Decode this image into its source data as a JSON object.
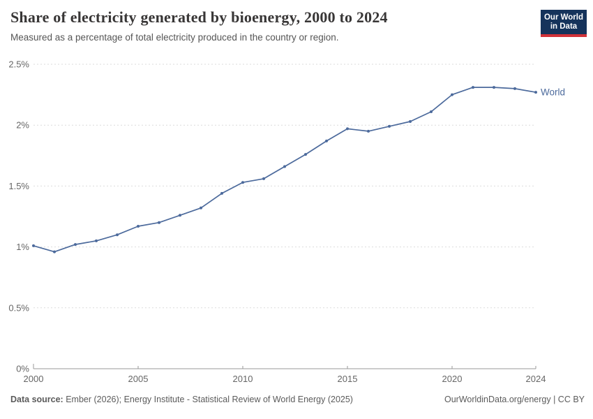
{
  "header": {
    "title": "Share of electricity generated by bioenergy, 2000 to 2024",
    "subtitle": "Measured as a percentage of total electricity produced in the country or region.",
    "logo": {
      "line1": "Our World",
      "line2": "in Data"
    }
  },
  "chart_data": {
    "type": "line",
    "title": "Share of electricity generated by bioenergy, 2000 to 2024",
    "xlabel": "",
    "ylabel": "",
    "xlim": [
      2000,
      2024
    ],
    "ylim": [
      0,
      2.5
    ],
    "grid": "horizontal-dashed",
    "legend_position": "end-of-line-label",
    "x": [
      2000,
      2001,
      2002,
      2003,
      2004,
      2005,
      2006,
      2007,
      2008,
      2009,
      2010,
      2011,
      2012,
      2013,
      2014,
      2015,
      2016,
      2017,
      2018,
      2019,
      2020,
      2021,
      2022,
      2023,
      2024
    ],
    "series": [
      {
        "name": "World",
        "color": "#4C6A9C",
        "values": [
          1.01,
          0.96,
          1.02,
          1.05,
          1.1,
          1.17,
          1.2,
          1.26,
          1.32,
          1.44,
          1.53,
          1.56,
          1.66,
          1.76,
          1.87,
          1.97,
          1.95,
          1.99,
          2.03,
          2.11,
          2.25,
          2.31,
          2.31,
          2.3,
          2.27
        ]
      }
    ],
    "y_ticks": {
      "values": [
        0,
        0.5,
        1,
        1.5,
        2,
        2.5
      ],
      "labels": [
        "0%",
        "0.5%",
        "1%",
        "1.5%",
        "2%",
        "2.5%"
      ]
    },
    "x_ticks": {
      "values": [
        2000,
        2005,
        2010,
        2015,
        2020,
        2024
      ],
      "labels": [
        "2000",
        "2005",
        "2010",
        "2015",
        "2020",
        "2024"
      ]
    }
  },
  "footer": {
    "source_label": "Data source:",
    "source_text": " Ember (2026); Energy Institute - Statistical Review of World Energy (2025)",
    "credit": "OurWorldinData.org/energy | CC BY"
  },
  "colors": {
    "line": "#4C6A9C",
    "grid": "#DBDBDB",
    "axis": "#999999",
    "tick_text": "#666666",
    "title_text": "#383636",
    "subtitle_text": "#555555",
    "footer_text": "#5B5B5B",
    "logo_bg": "#15335B",
    "logo_accent": "#D13239"
  }
}
